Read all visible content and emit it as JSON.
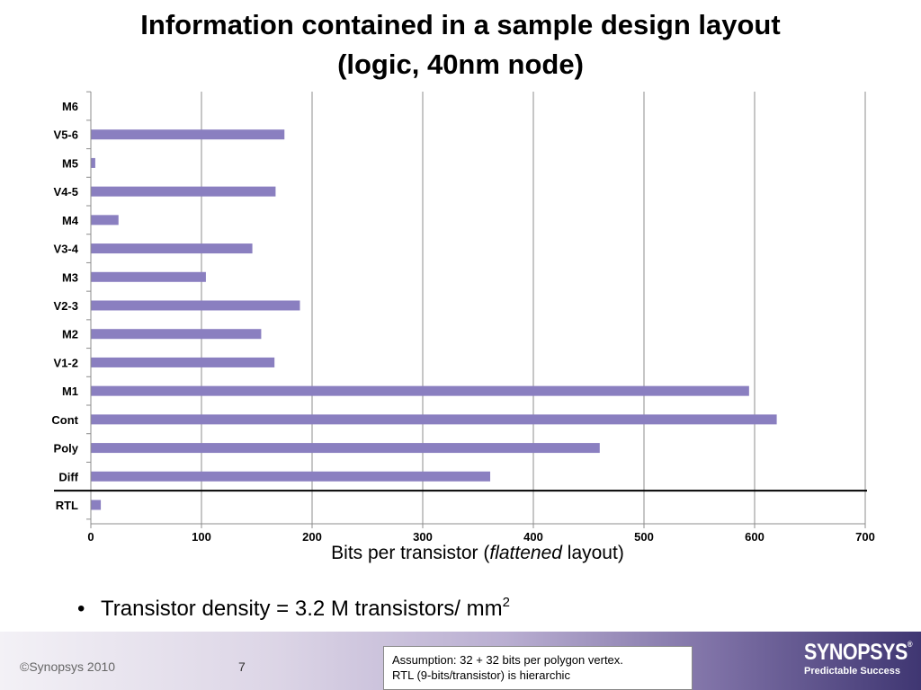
{
  "slide": {
    "title_line1": "Information contained in a sample design layout",
    "title_line2": "(logic, 40nm node)",
    "bullet_text": "Transistor density = 3.2 M transistors/ mm",
    "bullet_sup": "2",
    "copyright": "Synopsys 2010",
    "page_number": "7",
    "note_line1": "Assumption: 32 + 32 bits per polygon vertex.",
    "note_line2": "RTL  (9-bits/transistor) is hierarchic",
    "logo_name": "SYNOPSYS",
    "logo_reg": "®",
    "logo_tagline": "Predictable Success"
  },
  "chart_data": {
    "type": "bar",
    "orientation": "horizontal",
    "categories": [
      "M6",
      "V5-6",
      "M5",
      "V4-5",
      "M4",
      "V3-4",
      "M3",
      "V2-3",
      "M2",
      "V1-2",
      "M1",
      "Cont",
      "Poly",
      "Diff",
      "RTL"
    ],
    "values": [
      0,
      175,
      4,
      167,
      25,
      146,
      104,
      189,
      154,
      166,
      595,
      620,
      460,
      361,
      9
    ],
    "xlabel_prefix": "Bits per transistor (",
    "xlabel_italic": "flattened",
    "xlabel_suffix": " layout)",
    "xlim": [
      0,
      700
    ],
    "xticks": [
      0,
      100,
      200,
      300,
      400,
      500,
      600,
      700
    ],
    "grid": "vertical",
    "bar_color": "#8a7fc0",
    "separator_after": "Diff"
  }
}
